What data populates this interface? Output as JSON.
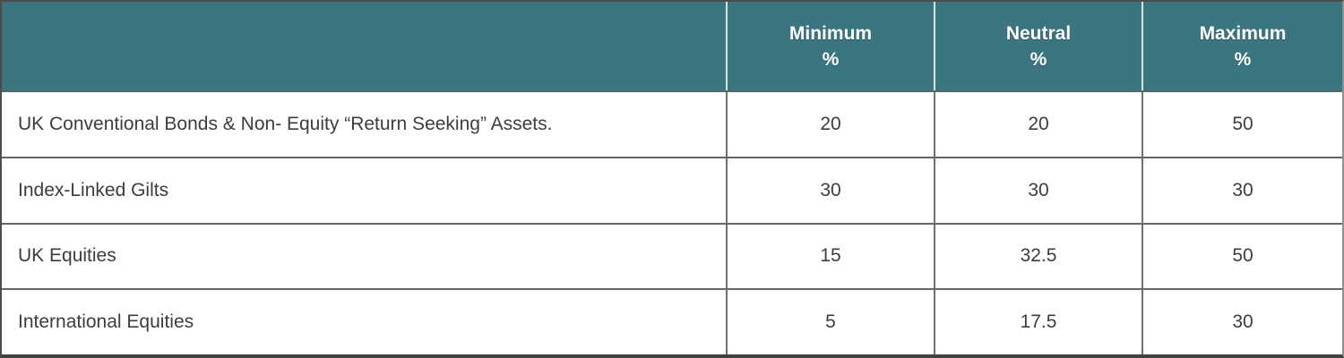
{
  "colors": {
    "header_bg": "#3A7580",
    "header_text": "#FFFFFF",
    "body_text": "#3D3D3D",
    "grid_line": "#6E6E6E",
    "outer_border_dark": "#4C4C4C",
    "outer_border_light": "#8F8F8F"
  },
  "table": {
    "header": {
      "row_label_column": "",
      "columns": [
        {
          "label": "Minimum",
          "unit": "%"
        },
        {
          "label": "Neutral",
          "unit": "%"
        },
        {
          "label": "Maximum",
          "unit": "%"
        }
      ]
    },
    "rows": [
      {
        "label": "UK Conventional Bonds & Non- Equity “Return Seeking” Assets.",
        "minimum": "20",
        "neutral": "20",
        "maximum": "50"
      },
      {
        "label": "Index-Linked Gilts",
        "minimum": "30",
        "neutral": "30",
        "maximum": "30"
      },
      {
        "label": "UK Equities",
        "minimum": "15",
        "neutral": "32.5",
        "maximum": "50"
      },
      {
        "label": "International Equities",
        "minimum": "5",
        "neutral": "17.5",
        "maximum": "30"
      }
    ]
  },
  "chart_data": {
    "type": "table",
    "columns": [
      "",
      "Minimum %",
      "Neutral %",
      "Maximum %"
    ],
    "rows": [
      [
        "UK Conventional Bonds & Non- Equity “Return Seeking” Assets.",
        20,
        20,
        50
      ],
      [
        "Index-Linked Gilts",
        30,
        30,
        30
      ],
      [
        "UK Equities",
        15,
        32.5,
        50
      ],
      [
        "International Equities",
        5,
        17.5,
        30
      ]
    ]
  }
}
